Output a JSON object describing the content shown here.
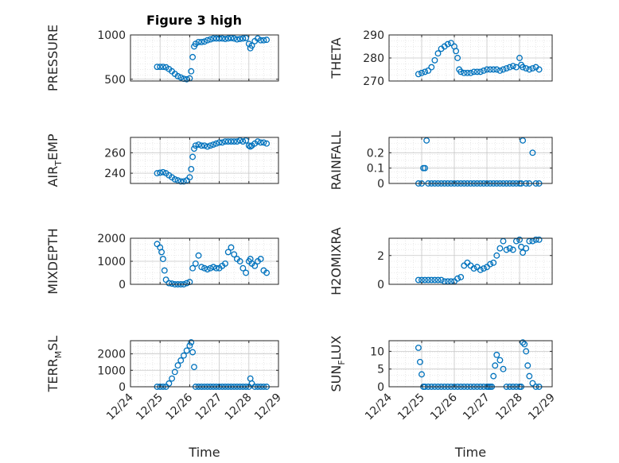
{
  "title": "Figure 3 high",
  "colors": {
    "marker": "#0072BD",
    "axis": "#262626",
    "grid": "#dcdcdc"
  },
  "chart_data": [
    {
      "type": "scatter",
      "name": "PRESSURE",
      "ylabel": "PRESSURE",
      "ylim": [
        480,
        1000
      ],
      "yticks": [
        500,
        1000
      ],
      "ytick_labels": [
        "500",
        "1000"
      ],
      "xlim": [
        0,
        5
      ],
      "xticks": [
        0,
        1,
        2,
        3,
        4,
        5
      ],
      "xtick_labels": [
        "12/24",
        "12/25",
        "12/26",
        "12/27",
        "12/28",
        "12/29"
      ],
      "xlabel": "",
      "series": [
        {
          "name": "PRESSURE",
          "x": [
            0.9,
            1.0,
            1.1,
            1.2,
            1.3,
            1.4,
            1.5,
            1.6,
            1.7,
            1.8,
            1.9,
            2.0,
            2.05,
            2.1,
            2.15,
            2.2,
            2.3,
            2.4,
            2.5,
            2.6,
            2.7,
            2.8,
            2.9,
            3.0,
            3.1,
            3.2,
            3.3,
            3.4,
            3.5,
            3.6,
            3.7,
            3.8,
            3.9,
            4.0,
            4.05,
            4.1,
            4.2,
            4.3,
            4.4,
            4.5,
            4.6
          ],
          "y": [
            640,
            640,
            640,
            635,
            615,
            590,
            560,
            535,
            520,
            505,
            500,
            510,
            590,
            750,
            870,
            900,
            920,
            920,
            925,
            940,
            950,
            960,
            960,
            960,
            960,
            955,
            960,
            965,
            960,
            950,
            955,
            960,
            965,
            900,
            850,
            880,
            930,
            960,
            940,
            940,
            945
          ]
        }
      ]
    },
    {
      "type": "scatter",
      "name": "THETA",
      "ylabel": "THETA",
      "ylim": [
        270,
        290
      ],
      "yticks": [
        270,
        280,
        290
      ],
      "ytick_labels": [
        "270",
        "280",
        "290"
      ],
      "xlim": [
        0,
        5
      ],
      "xticks": [
        0,
        1,
        2,
        3,
        4,
        5
      ],
      "xtick_labels": [
        "12/24",
        "12/25",
        "12/26",
        "12/27",
        "12/28",
        "12/29"
      ],
      "xlabel": "",
      "series": [
        {
          "name": "THETA",
          "x": [
            0.9,
            1.0,
            1.1,
            1.2,
            1.3,
            1.4,
            1.5,
            1.6,
            1.7,
            1.8,
            1.9,
            2.0,
            2.05,
            2.1,
            2.15,
            2.2,
            2.3,
            2.4,
            2.5,
            2.6,
            2.7,
            2.8,
            2.9,
            3.0,
            3.1,
            3.2,
            3.3,
            3.4,
            3.5,
            3.6,
            3.7,
            3.8,
            3.9,
            4.0,
            4.05,
            4.1,
            4.2,
            4.3,
            4.4,
            4.5,
            4.6
          ],
          "y": [
            273,
            273.5,
            274,
            274.5,
            276,
            279,
            282,
            284,
            285,
            286,
            286.5,
            285,
            283,
            280,
            275,
            274,
            273.5,
            273.5,
            273.5,
            274,
            274,
            274,
            274.5,
            275,
            275,
            275,
            275,
            274.5,
            275,
            275.5,
            276,
            276.5,
            276,
            280,
            277,
            276,
            275.5,
            275,
            275.5,
            276,
            275
          ]
        }
      ]
    },
    {
      "type": "scatter",
      "name": "AIR_TEMP",
      "ylabel_main": "AIR",
      "ylabel_sub": "T",
      "ylabel_rest": "EMP",
      "ylim": [
        230,
        275
      ],
      "yticks": [
        240,
        260
      ],
      "ytick_labels": [
        "240",
        "260"
      ],
      "xlim": [
        0,
        5
      ],
      "xticks": [
        0,
        1,
        2,
        3,
        4,
        5
      ],
      "xtick_labels": [
        "12/24",
        "12/25",
        "12/26",
        "12/27",
        "12/28",
        "12/29"
      ],
      "xlabel": "",
      "series": [
        {
          "name": "AIR_TEMP",
          "x": [
            0.9,
            1.0,
            1.1,
            1.2,
            1.3,
            1.4,
            1.5,
            1.6,
            1.7,
            1.8,
            1.9,
            2.0,
            2.05,
            2.1,
            2.15,
            2.2,
            2.3,
            2.4,
            2.5,
            2.6,
            2.7,
            2.8,
            2.9,
            3.0,
            3.1,
            3.2,
            3.3,
            3.4,
            3.5,
            3.6,
            3.7,
            3.8,
            3.9,
            4.0,
            4.05,
            4.1,
            4.2,
            4.3,
            4.4,
            4.5,
            4.6
          ],
          "y": [
            240,
            240.5,
            241,
            240,
            238,
            236,
            234,
            233,
            232,
            232,
            233,
            236,
            244,
            256,
            264,
            267,
            268,
            267,
            267,
            266,
            267,
            268,
            269,
            270,
            270,
            271,
            271,
            271,
            271,
            271,
            272,
            271,
            272,
            267,
            266,
            267,
            269,
            271,
            270,
            270,
            269
          ]
        }
      ]
    },
    {
      "type": "scatter",
      "name": "RAINFALL",
      "ylabel": "RAINFALL",
      "ylim": [
        0,
        0.3
      ],
      "yticks": [
        0,
        0.1,
        0.2
      ],
      "ytick_labels": [
        "0",
        "0.1",
        "0.2"
      ],
      "xlim": [
        0,
        5
      ],
      "xticks": [
        0,
        1,
        2,
        3,
        4,
        5
      ],
      "xtick_labels": [
        "12/24",
        "12/25",
        "12/26",
        "12/27",
        "12/28",
        "12/29"
      ],
      "xlabel": "Time",
      "series": [
        {
          "name": "RAINFALL",
          "x": [
            0.9,
            1.0,
            1.05,
            1.1,
            1.15,
            1.2,
            1.3,
            1.4,
            1.5,
            1.6,
            1.7,
            1.8,
            1.9,
            2.0,
            2.1,
            2.2,
            2.3,
            2.4,
            2.5,
            2.6,
            2.7,
            2.8,
            2.9,
            3.0,
            3.1,
            3.2,
            3.3,
            3.4,
            3.5,
            3.6,
            3.7,
            3.8,
            3.9,
            4.0,
            4.05,
            4.1,
            4.2,
            4.3,
            4.4,
            4.5,
            4.6
          ],
          "y": [
            0,
            0,
            0.1,
            0.1,
            0.28,
            0,
            0,
            0,
            0,
            0,
            0,
            0,
            0,
            0,
            0,
            0,
            0,
            0,
            0,
            0,
            0,
            0,
            0,
            0,
            0,
            0,
            0,
            0,
            0,
            0,
            0,
            0,
            0,
            0,
            0,
            0.28,
            0,
            0,
            0.2,
            0,
            0
          ]
        }
      ]
    },
    {
      "type": "scatter",
      "name": "MIXDEPTH",
      "ylabel": "MIXDEPTH",
      "ylim": [
        0,
        2000
      ],
      "yticks": [
        0,
        1000,
        2000
      ],
      "ytick_labels": [
        "0",
        "1000",
        "2000"
      ],
      "xlim": [
        0,
        5
      ],
      "xticks": [
        0,
        1,
        2,
        3,
        4,
        5
      ],
      "xtick_labels": [
        "12/24",
        "12/25",
        "12/26",
        "12/27",
        "12/28",
        "12/29"
      ],
      "xlabel": "",
      "series": [
        {
          "name": "MIXDEPTH",
          "x": [
            0.9,
            1.0,
            1.05,
            1.1,
            1.15,
            1.2,
            1.3,
            1.4,
            1.5,
            1.6,
            1.7,
            1.8,
            1.9,
            2.0,
            2.1,
            2.2,
            2.3,
            2.4,
            2.5,
            2.6,
            2.7,
            2.8,
            2.9,
            3.0,
            3.1,
            3.2,
            3.3,
            3.4,
            3.5,
            3.6,
            3.7,
            3.8,
            3.9,
            4.0,
            4.05,
            4.1,
            4.2,
            4.3,
            4.4,
            4.5,
            4.6
          ],
          "y": [
            1750,
            1600,
            1400,
            1100,
            600,
            200,
            50,
            30,
            0,
            0,
            0,
            0,
            50,
            100,
            700,
            900,
            1250,
            750,
            700,
            650,
            700,
            750,
            700,
            700,
            800,
            900,
            1400,
            1600,
            1300,
            1100,
            1000,
            700,
            500,
            1000,
            1100,
            900,
            800,
            1000,
            1100,
            600,
            500
          ]
        }
      ]
    },
    {
      "type": "scatter",
      "name": "H2OMIXRA",
      "ylabel": "H2OMIXRA",
      "ylim": [
        0,
        3.2
      ],
      "yticks": [
        0,
        2
      ],
      "ytick_labels": [
        "0",
        "2"
      ],
      "xlim": [
        0,
        5
      ],
      "xticks": [
        0,
        1,
        2,
        3,
        4,
        5
      ],
      "xtick_labels": [
        "12/24",
        "12/25",
        "12/26",
        "12/27",
        "12/28",
        "12/29"
      ],
      "xlabel": "",
      "series": [
        {
          "name": "H2OMIXRA",
          "x": [
            0.9,
            1.0,
            1.1,
            1.2,
            1.3,
            1.4,
            1.5,
            1.6,
            1.7,
            1.8,
            1.9,
            2.0,
            2.1,
            2.2,
            2.3,
            2.4,
            2.5,
            2.6,
            2.7,
            2.8,
            2.9,
            3.0,
            3.1,
            3.2,
            3.3,
            3.4,
            3.5,
            3.6,
            3.7,
            3.8,
            3.9,
            4.0,
            4.05,
            4.1,
            4.2,
            4.3,
            4.4,
            4.5,
            4.6
          ],
          "y": [
            0.3,
            0.3,
            0.3,
            0.3,
            0.3,
            0.3,
            0.3,
            0.3,
            0.2,
            0.2,
            0.2,
            0.2,
            0.4,
            0.5,
            1.3,
            1.5,
            1.3,
            1.1,
            1.2,
            1.0,
            1.1,
            1.2,
            1.4,
            1.5,
            2.0,
            2.5,
            3.0,
            2.4,
            2.5,
            2.4,
            3.0,
            3.1,
            2.6,
            2.2,
            2.5,
            3.0,
            3.0,
            3.1,
            3.1
          ]
        }
      ]
    },
    {
      "type": "scatter",
      "name": "TERR_MSL",
      "ylabel_main": "TERR",
      "ylabel_sub": "M",
      "ylabel_rest": "SL",
      "ylim": [
        0,
        2800
      ],
      "yticks": [
        0,
        1000,
        2000
      ],
      "ytick_labels": [
        "0",
        "1000",
        "2000"
      ],
      "xlim": [
        0,
        5
      ],
      "xticks": [
        0,
        1,
        2,
        3,
        4,
        5
      ],
      "xtick_labels": [
        "12/24",
        "12/25",
        "12/26",
        "12/27",
        "12/28",
        "12/29"
      ],
      "xlabel": "Time",
      "series": [
        {
          "name": "TERR_MSL",
          "x": [
            0.9,
            1.0,
            1.1,
            1.2,
            1.3,
            1.4,
            1.5,
            1.6,
            1.7,
            1.8,
            1.9,
            2.0,
            2.05,
            2.1,
            2.15,
            2.2,
            2.3,
            2.4,
            2.5,
            2.6,
            2.7,
            2.8,
            2.9,
            3.0,
            3.1,
            3.2,
            3.3,
            3.4,
            3.5,
            3.6,
            3.7,
            3.8,
            3.9,
            4.0,
            4.05,
            4.1,
            4.2,
            4.3,
            4.4,
            4.5,
            4.6
          ],
          "y": [
            0,
            0,
            0,
            0,
            200,
            500,
            900,
            1300,
            1600,
            1900,
            2200,
            2500,
            2700,
            2100,
            1200,
            0,
            0,
            0,
            0,
            0,
            0,
            0,
            0,
            0,
            0,
            0,
            0,
            0,
            0,
            0,
            0,
            0,
            0,
            0,
            500,
            200,
            0,
            0,
            0,
            0,
            0
          ]
        }
      ]
    },
    {
      "type": "scatter",
      "name": "SUN_FLUX",
      "ylabel_main": "SUN",
      "ylabel_sub": "F",
      "ylabel_rest": "LUX",
      "ylim": [
        0,
        13
      ],
      "yticks": [
        0,
        5,
        10
      ],
      "ytick_labels": [
        "0",
        "5",
        "10"
      ],
      "xlim": [
        0,
        5
      ],
      "xticks": [
        0,
        1,
        2,
        3,
        4,
        5
      ],
      "xtick_labels": [
        "12/24",
        "12/25",
        "12/26",
        "12/27",
        "12/28",
        "12/29"
      ],
      "xlabel": "Time",
      "series": [
        {
          "name": "SUN_FLUX",
          "x": [
            0.9,
            0.95,
            1.0,
            1.05,
            1.1,
            1.2,
            1.3,
            1.4,
            1.5,
            1.6,
            1.7,
            1.8,
            1.9,
            2.0,
            2.1,
            2.2,
            2.3,
            2.4,
            2.5,
            2.6,
            2.7,
            2.8,
            2.9,
            3.0,
            3.05,
            3.1,
            3.15,
            3.2,
            3.25,
            3.3,
            3.4,
            3.5,
            3.6,
            3.7,
            3.8,
            3.9,
            4.0,
            4.05,
            4.1,
            4.15,
            4.2,
            4.25,
            4.3,
            4.4,
            4.5,
            4.6
          ],
          "y": [
            11,
            7,
            3.5,
            0,
            0,
            0,
            0,
            0,
            0,
            0,
            0,
            0,
            0,
            0,
            0,
            0,
            0,
            0,
            0,
            0,
            0,
            0,
            0,
            0,
            0,
            0,
            0,
            3,
            6,
            9,
            7.5,
            5,
            0,
            0,
            0,
            0,
            0,
            0,
            12.5,
            12,
            10,
            6,
            3,
            1,
            0,
            0
          ]
        }
      ]
    }
  ]
}
